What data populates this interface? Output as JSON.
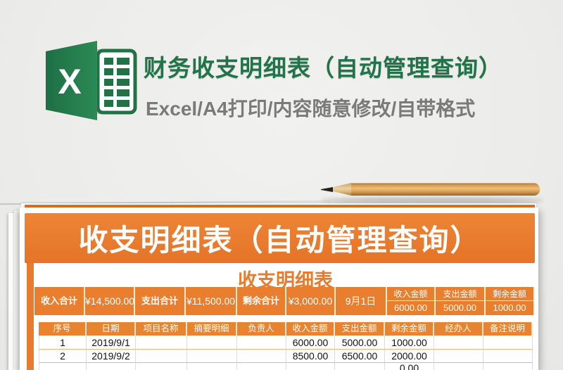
{
  "colors": {
    "excel_green": "#21734a",
    "template_orange": "#e87c2e",
    "header_orange": "#e8832f",
    "subtitle_gray": "#7a7a7a",
    "page_background": "#ececea"
  },
  "hero": {
    "title": "财务收支明细表（自动管理查询）",
    "subtitle": "Excel/A4打印/内容随意修改/自带格式",
    "logo_letter": "X"
  },
  "sheet": {
    "banner_title": "收支明细表（自动管理查询）",
    "inner_title": "收支明细表",
    "summary": {
      "items": [
        {
          "label": "收入合计",
          "value": "¥14,500.00"
        },
        {
          "label": "支出合计",
          "value": "¥11,500.00"
        },
        {
          "label": "剩余合计",
          "value": "¥3,000.00"
        }
      ],
      "date": "9月1日",
      "right": {
        "headers": [
          "收入金额",
          "支出金额",
          "剩余金额"
        ],
        "values": [
          "6000.00",
          "5000.00",
          "1000.00"
        ]
      }
    },
    "table": {
      "headers": [
        "序号",
        "日期",
        "项目名称",
        "摘要明细",
        "负责人",
        "收入金额",
        "支出金额",
        "剩余金额",
        "经办人",
        "备注说明"
      ],
      "rows": [
        [
          "1",
          "2019/9/1",
          "",
          "",
          "",
          "6000.00",
          "5000.00",
          "1000.00",
          "",
          ""
        ],
        [
          "2",
          "2019/9/2",
          "",
          "",
          "",
          "8500.00",
          "6500.00",
          "2000.00",
          "",
          ""
        ],
        [
          "",
          "",
          "",
          "",
          "",
          "",
          "",
          "0.00",
          "",
          ""
        ]
      ]
    }
  }
}
